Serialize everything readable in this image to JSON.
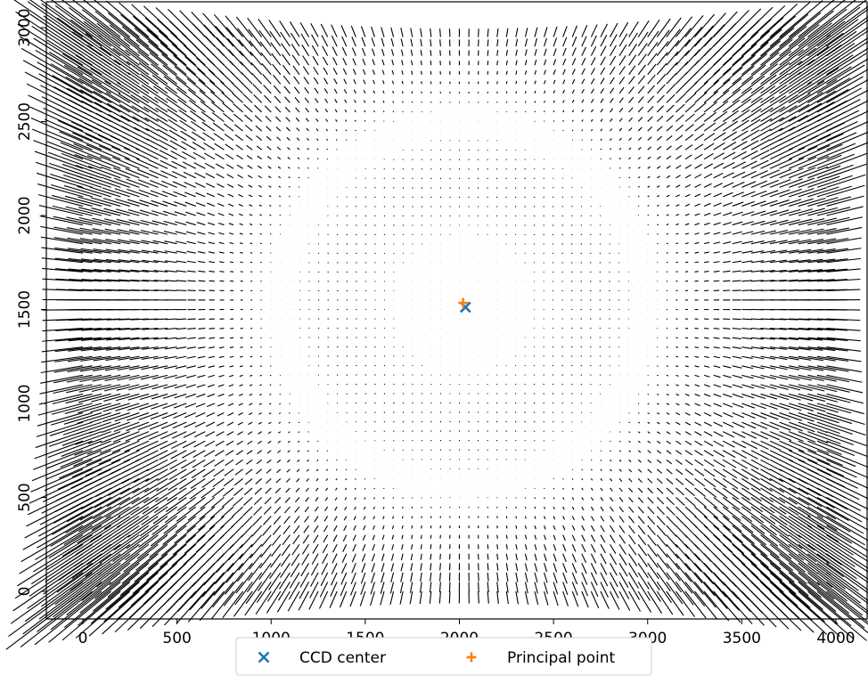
{
  "chart_data": {
    "type": "quiver",
    "title": "",
    "xlabel": "",
    "ylabel": "",
    "xlim": [
      -230,
      4050
    ],
    "ylim": [
      -160,
      3120
    ],
    "x_ticks": [
      {
        "value": 0,
        "label": "0"
      },
      {
        "value": 500,
        "label": "500"
      },
      {
        "value": 1000,
        "label": "1000"
      },
      {
        "value": 1500,
        "label": "1500"
      },
      {
        "value": 2000,
        "label": "2000"
      },
      {
        "value": 2500,
        "label": "2500"
      },
      {
        "value": 3000,
        "label": "3000"
      },
      {
        "value": 3500,
        "label": "3500"
      },
      {
        "value": 4000,
        "label": "4000"
      }
    ],
    "y_ticks": [
      {
        "value": 0,
        "label": "0"
      },
      {
        "value": 500,
        "label": "500"
      },
      {
        "value": 1000,
        "label": "1000"
      },
      {
        "value": 1500,
        "label": "1500"
      },
      {
        "value": 2000,
        "label": "2000"
      },
      {
        "value": 2500,
        "label": "2500"
      },
      {
        "value": 3000,
        "label": "3000"
      }
    ],
    "vector_field": {
      "x_range": [
        0,
        3984
      ],
      "y_range": [
        0,
        2988
      ],
      "x_step": 50,
      "y_step": 50,
      "distortion_center": [
        2020,
        1530
      ],
      "radial_k1": 1.8e-05,
      "radial_k2": -3e-12,
      "quiver_color": "#000000"
    },
    "points": [
      {
        "name": "CCD center",
        "x": 2032,
        "y": 1512,
        "marker": "x",
        "color": "#1f77b4"
      },
      {
        "name": "Principal point",
        "x": 2020,
        "y": 1535,
        "marker": "+",
        "color": "#ff7f0e"
      }
    ],
    "legend": {
      "placement": "bottom-center",
      "entries": [
        {
          "label": "CCD center",
          "marker": "x",
          "color": "#1f77b4"
        },
        {
          "label": "Principal point",
          "marker": "+",
          "color": "#ff7f0e"
        }
      ]
    },
    "grid": false
  }
}
